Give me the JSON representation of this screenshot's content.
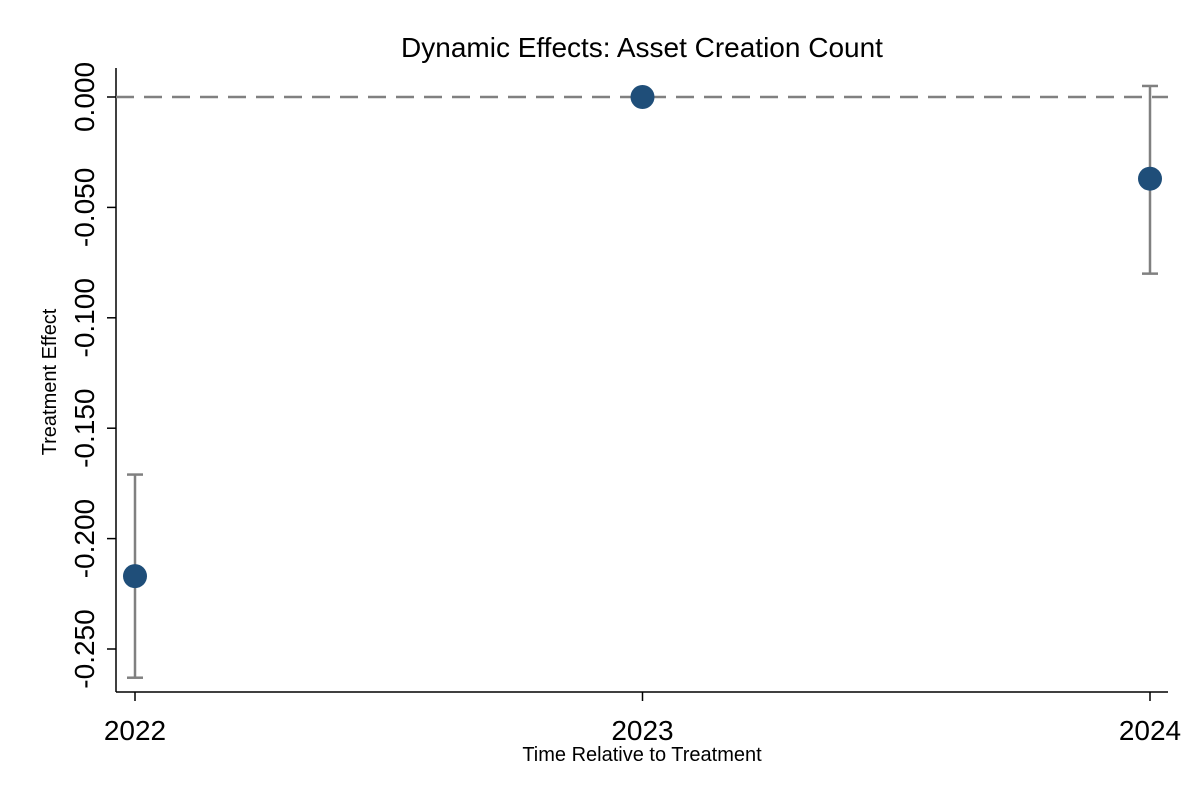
{
  "chart_data": {
    "type": "scatter",
    "title": "Dynamic Effects: Asset Creation Count",
    "xlabel": "Time Relative to Treatment",
    "ylabel": "Treatment Effect",
    "categories": [
      "2022",
      "2023",
      "2024"
    ],
    "yticks": [
      "0.000",
      "-0.050",
      "-0.100",
      "-0.150",
      "-0.200",
      "-0.250"
    ],
    "ylim": [
      -0.268,
      0.013
    ],
    "reference_line": 0,
    "points": [
      {
        "x": "2022",
        "y": -0.217,
        "ci_low": -0.263,
        "ci_high": -0.171
      },
      {
        "x": "2023",
        "y": 0.0,
        "ci_low": null,
        "ci_high": null
      },
      {
        "x": "2024",
        "y": -0.037,
        "ci_low": -0.08,
        "ci_high": 0.005
      }
    ],
    "grid": false,
    "legend": "none",
    "colors": {
      "point": "#1f4e79",
      "ci": "#808080",
      "reference": "#808080",
      "axis": "#000000"
    }
  }
}
